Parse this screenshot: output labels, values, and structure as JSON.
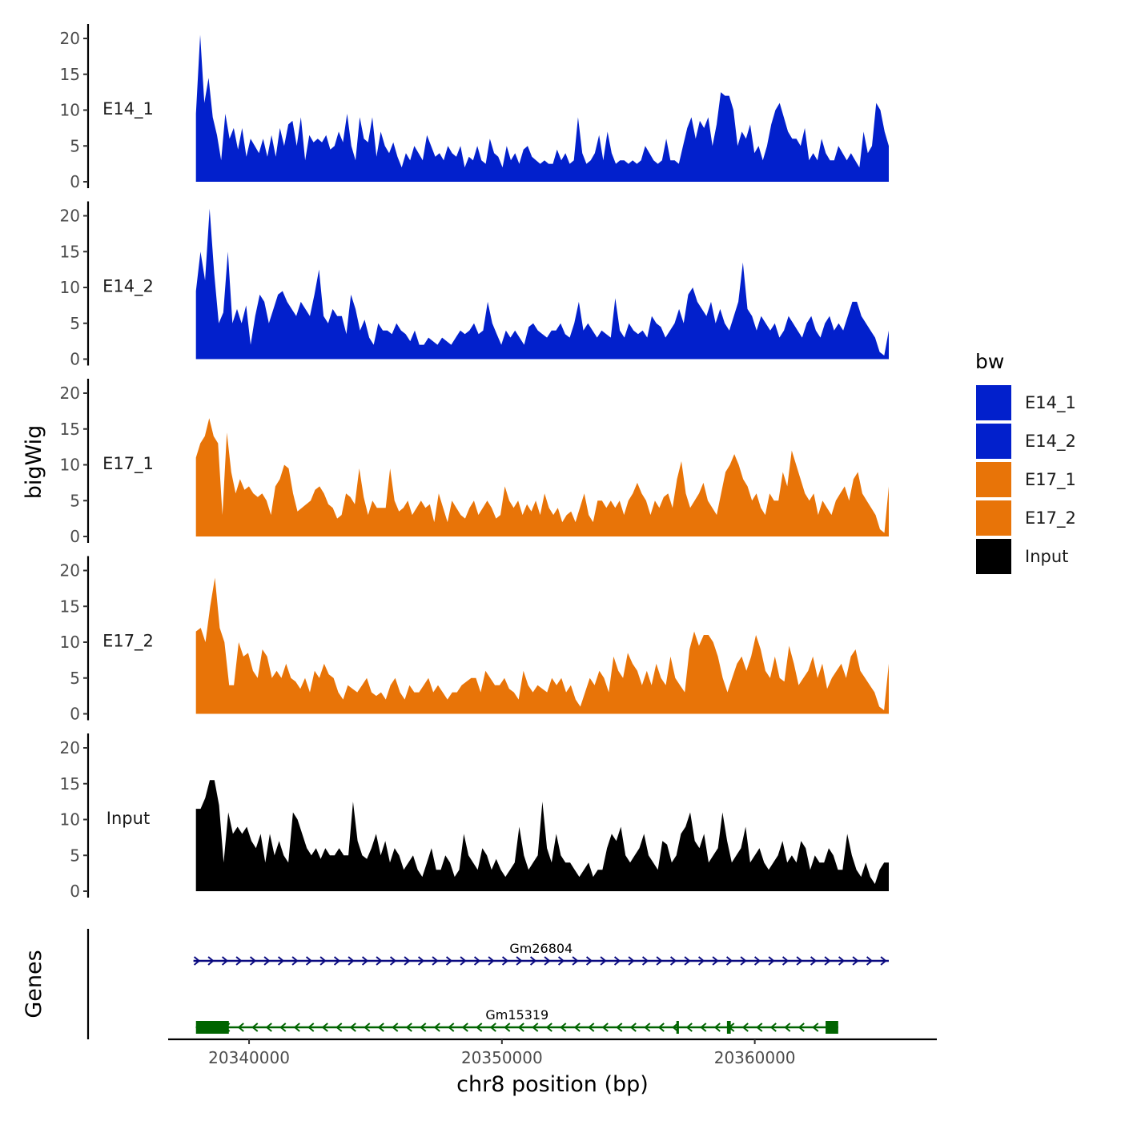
{
  "chart_data": {
    "type": "area",
    "title": "",
    "xlabel": "chr8 position (bp)",
    "ylabel": "bigWig",
    "genes_label": "Genes",
    "xlim": [
      20336800,
      20367200
    ],
    "ylim": [
      0,
      21
    ],
    "x_range": [
      20337900,
      20365300
    ],
    "x_ticks": [
      {
        "value": 20340000,
        "label": "20340000"
      },
      {
        "value": 20350000,
        "label": "20350000"
      },
      {
        "value": 20360000,
        "label": "20360000"
      }
    ],
    "y_ticks": [
      {
        "value": 0,
        "label": "0"
      },
      {
        "value": 5,
        "label": "5"
      },
      {
        "value": 10,
        "label": "10"
      },
      {
        "value": 15,
        "label": "15"
      },
      {
        "value": 20,
        "label": "20"
      }
    ],
    "legend": {
      "title": "bw",
      "entries": [
        {
          "label": "E14_1",
          "color": "#0220CC"
        },
        {
          "label": "E14_2",
          "color": "#0220CC"
        },
        {
          "label": "E17_1",
          "color": "#E87408"
        },
        {
          "label": "E17_2",
          "color": "#E87408"
        },
        {
          "label": "Input",
          "color": "#000000"
        }
      ]
    },
    "series": [
      {
        "name": "E14_1",
        "label": "E14_1",
        "color": "#0220CC",
        "values": [
          9.5,
          20.5,
          11,
          14.5,
          9,
          6.5,
          3,
          9.5,
          6,
          7.5,
          4.5,
          7.5,
          3.5,
          6,
          5,
          4,
          6,
          3.5,
          6.5,
          3.5,
          7.5,
          5,
          8,
          8.5,
          5,
          9,
          3,
          6.5,
          5.5,
          6,
          5.5,
          6.5,
          4.5,
          5,
          7,
          5.5,
          9.5,
          5,
          3,
          9,
          6,
          5.5,
          9,
          3.5,
          7,
          5,
          4,
          5.5,
          3.5,
          2,
          4,
          3,
          5,
          4,
          3,
          6.5,
          5,
          3.5,
          4,
          3,
          5,
          4,
          3.5,
          5,
          2,
          3.5,
          3,
          5,
          3,
          2.5,
          6,
          4,
          3.5,
          2,
          5,
          3,
          4,
          2.5,
          4.5,
          5,
          3.5,
          3,
          2.5,
          3,
          2.5,
          2.5,
          4.5,
          3,
          4,
          2.5,
          3,
          9,
          4,
          2.5,
          3,
          4,
          6.5,
          3,
          7,
          4,
          2.5,
          3,
          3,
          2.5,
          3,
          2.5,
          3,
          5,
          4,
          3,
          2.5,
          3,
          6,
          3,
          3,
          2.5,
          5,
          7.5,
          9,
          6,
          8.5,
          7.5,
          9,
          5,
          8,
          12.5,
          12,
          12,
          10,
          5,
          7,
          6,
          8,
          4,
          5,
          3,
          5,
          8,
          10,
          11,
          9,
          7,
          6,
          6,
          5,
          7.5,
          3,
          4,
          3,
          6,
          4,
          3,
          3,
          5,
          4,
          3,
          4,
          3,
          2,
          7,
          4,
          5,
          11,
          10,
          7,
          5
        ],
        "ranges": [
          0,
          21
        ]
      },
      {
        "name": "E14_2",
        "label": "E14_2",
        "color": "#0220CC",
        "values": [
          9.5,
          15,
          11,
          21,
          12,
          5,
          6.5,
          15,
          5,
          7,
          5,
          7.5,
          2,
          6,
          9,
          8,
          5,
          7,
          9,
          9.5,
          8,
          7,
          6,
          8,
          7,
          6,
          9,
          12.5,
          6,
          5,
          7,
          6,
          6,
          3.5,
          9,
          7,
          4,
          5.5,
          3,
          2,
          5,
          4,
          4,
          3.5,
          5,
          4,
          3.5,
          2.5,
          4,
          2,
          2,
          3,
          2.5,
          2,
          3,
          2.5,
          2,
          3,
          4,
          3.5,
          4,
          5,
          3.5,
          4,
          8,
          5,
          3.5,
          2,
          4,
          3,
          4,
          3,
          2,
          4.5,
          5,
          4,
          3.5,
          3,
          4,
          4,
          5,
          3.5,
          3,
          5,
          8,
          4,
          5,
          4,
          3,
          4,
          3.5,
          3,
          8.5,
          4,
          3,
          5,
          4,
          3.5,
          4,
          3,
          6,
          5,
          4.5,
          3,
          4,
          5,
          7,
          5,
          9,
          10,
          8,
          7,
          6,
          8,
          5,
          7,
          5,
          4,
          6,
          8,
          13.5,
          7,
          6,
          4,
          6,
          5,
          4,
          5,
          3,
          4,
          6,
          5,
          4,
          3,
          5,
          6,
          4,
          3,
          5,
          6,
          4,
          5,
          4,
          6,
          8,
          8,
          6,
          5,
          4,
          3,
          1,
          0.5,
          4
        ],
        "ranges": [
          0,
          21
        ]
      },
      {
        "name": "E17_1",
        "label": "E17_1",
        "color": "#E87408",
        "values": [
          11,
          13,
          14,
          16.5,
          14,
          13,
          3,
          14.5,
          9,
          6,
          8,
          6.5,
          7,
          6,
          5.5,
          6,
          5,
          3,
          7,
          8,
          10,
          9.5,
          6,
          3.5,
          4,
          4.5,
          5,
          6.5,
          7,
          6,
          4.5,
          4,
          2.5,
          3,
          6,
          5.5,
          4.5,
          9.5,
          5.5,
          3,
          5,
          4,
          4,
          4,
          9.5,
          5,
          3.5,
          4,
          5,
          3,
          4,
          5,
          4,
          4.5,
          2,
          6,
          4,
          2,
          5,
          4,
          3,
          2.5,
          4,
          5,
          3,
          4,
          5,
          4,
          2.5,
          3,
          7,
          5,
          4,
          5,
          3,
          4.5,
          3.5,
          5,
          3,
          6,
          4,
          3,
          4,
          2,
          3,
          3.5,
          2,
          4,
          6,
          3,
          2,
          5,
          5,
          4,
          5,
          4,
          5,
          3,
          5,
          6,
          7.5,
          6,
          5,
          3,
          5,
          4,
          5.5,
          6,
          4,
          8,
          10.5,
          6,
          4,
          5,
          6,
          7.5,
          5,
          4,
          3,
          6,
          9,
          10,
          11.5,
          10,
          8,
          7,
          5,
          6,
          4,
          3,
          6,
          5,
          5,
          9,
          7,
          12,
          10,
          8,
          6,
          5,
          6,
          3,
          5,
          4,
          3,
          5,
          6,
          7,
          5,
          8,
          9,
          6,
          5,
          4,
          3,
          1,
          0.5,
          7
        ],
        "ranges": [
          0,
          21
        ]
      },
      {
        "name": "E17_2",
        "label": "E17_2",
        "color": "#E87408",
        "values": [
          11.5,
          12,
          10,
          15,
          19,
          12,
          10,
          4,
          4,
          10,
          8,
          8.5,
          6,
          5,
          9,
          8,
          5,
          6,
          5,
          7,
          5,
          4.5,
          3.5,
          5,
          3,
          6,
          5,
          7,
          5.5,
          5,
          3,
          2,
          4,
          3.5,
          3,
          4,
          5,
          3,
          2.5,
          3,
          2,
          4,
          5,
          3,
          2,
          4,
          3,
          3,
          4,
          5,
          3,
          4,
          3,
          2,
          3,
          3,
          4,
          4.5,
          5,
          5,
          3,
          6,
          5,
          4,
          4,
          5,
          3.5,
          3,
          2,
          6,
          4,
          3,
          4,
          3.5,
          3,
          5,
          4,
          5,
          3,
          4,
          2,
          1,
          3,
          5,
          4,
          6,
          5,
          3,
          8,
          6,
          5,
          8.5,
          7,
          6,
          4,
          6,
          4,
          7,
          5,
          4,
          8,
          5,
          4,
          3,
          9,
          11.5,
          9.5,
          11,
          11,
          10,
          8,
          5,
          3,
          5,
          7,
          8,
          6,
          8,
          11,
          9,
          6,
          5,
          8,
          5,
          4.5,
          9.5,
          7,
          4,
          5,
          6,
          8,
          5,
          7,
          3.5,
          5,
          6,
          7,
          5,
          8,
          9,
          6,
          5,
          4,
          3,
          1,
          0.5,
          7
        ],
        "ranges": [
          0,
          21
        ]
      },
      {
        "name": "Input",
        "label": "Input",
        "color": "#000000",
        "values": [
          11.5,
          11.5,
          13,
          15.5,
          15.5,
          12,
          4,
          11,
          8,
          9,
          8,
          9,
          7,
          6,
          8,
          4,
          8,
          5,
          7,
          5,
          4,
          11,
          10,
          8,
          6,
          5,
          6,
          4.5,
          6,
          5,
          5,
          6,
          5,
          5,
          12.5,
          7,
          5,
          4.5,
          6,
          8,
          5,
          7,
          4,
          6,
          5,
          3,
          4,
          5,
          3,
          2,
          4,
          6,
          3,
          3,
          5,
          4,
          2,
          3,
          8,
          5,
          4,
          3,
          6,
          5,
          3,
          4.5,
          3,
          2,
          3,
          4,
          9,
          5,
          3,
          4,
          5,
          12.5,
          6,
          4,
          8,
          5,
          4,
          4,
          3,
          2,
          3,
          4,
          2,
          3,
          3,
          6,
          8,
          7,
          9,
          5,
          4,
          5,
          6,
          8,
          5,
          4,
          3,
          7,
          6.5,
          4,
          5,
          8,
          9,
          11,
          7,
          6,
          8,
          4,
          5,
          6,
          11,
          7,
          4,
          5,
          6,
          9,
          4,
          5,
          6,
          4,
          3,
          4,
          5,
          7,
          4,
          5,
          4,
          7,
          6,
          3,
          5,
          4,
          4,
          6,
          5,
          3,
          3,
          8,
          5,
          3,
          2,
          4,
          2,
          1,
          3,
          4,
          4
        ],
        "ranges": [
          0,
          21
        ]
      }
    ],
    "genes": [
      {
        "name": "Gm26804",
        "strand": "+",
        "color": "#0A0A80",
        "start": 20337800,
        "end": 20365300,
        "exons": []
      },
      {
        "name": "Gm15319",
        "strand": "-",
        "color": "#006400",
        "start": 20337900,
        "end": 20363300,
        "exons": [
          [
            20337900,
            20339200
          ],
          [
            20356900,
            20357000
          ],
          [
            20358900,
            20359050
          ],
          [
            20362800,
            20363300
          ]
        ]
      }
    ]
  }
}
